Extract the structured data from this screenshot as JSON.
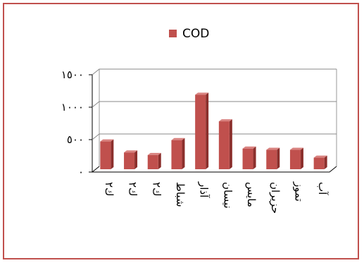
{
  "chart_data": {
    "type": "bar",
    "title": "",
    "xlabel": "",
    "ylabel": "",
    "categories": [
      "ك٢",
      "ك٢",
      "ك٢",
      "شباط",
      "آذار",
      "نيسان",
      "مايس",
      "حزيران",
      "تموز",
      "آب"
    ],
    "series": [
      {
        "name": "COD",
        "values": [
          450,
          280,
          240,
          470,
          1170,
          760,
          340,
          320,
          320,
          200
        ]
      }
    ],
    "ylim": [
      0,
      1500
    ],
    "yticks": [
      {
        "value": 0,
        "label": "٠"
      },
      {
        "value": 500,
        "label": "٥٠٠"
      },
      {
        "value": 1000,
        "label": "١٠٠٠"
      },
      {
        "value": 1500,
        "label": "١٥٠٠"
      }
    ],
    "grid": true,
    "legend_position": "top",
    "colors": {
      "bar_front": "#c0504d",
      "bar_side": "#8b2f2c",
      "bar_top": "#d98380",
      "frame": "#c0504d",
      "wall": "#000000"
    }
  }
}
